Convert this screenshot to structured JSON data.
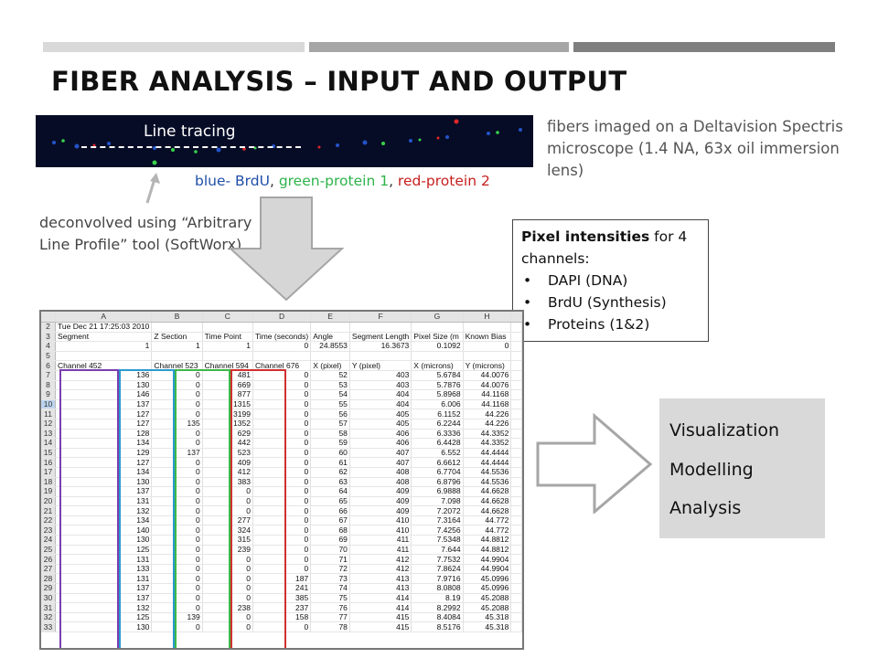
{
  "slide": {
    "title": "FIBER ANALYSIS – INPUT AND OUTPUT",
    "top_bar_colors": [
      "#d9d9d9",
      "#a6a6a6",
      "#7f7f7f"
    ]
  },
  "fiber_image": {
    "label": "Line tracing"
  },
  "imaging_description": "fibers imaged on a Deltavision Spectris microscope (1.4 NA, 63x oil immersion lens)",
  "channel_legend": {
    "blue": "blue- BrdU",
    "sep1": ", ",
    "green": "green-protein 1",
    "sep2": ", ",
    "red": "red-protein 2",
    "colors": {
      "blue": "#1f4fa8",
      "green": "#2db34a",
      "red": "#c81e1e"
    }
  },
  "deconvolution_note": "deconvolved using “Arbitrary Line Profile” tool (SoftWorx)",
  "pixel_box": {
    "heading_bold": "Pixel intensities",
    "heading_rest": " for 4 channels:",
    "items": [
      "DAPI (DNA)",
      "BrdU (Synthesis)",
      "Proteins (1&2)"
    ]
  },
  "output_box": {
    "items": [
      "Visualization",
      "Modelling",
      "Analysis"
    ]
  },
  "spreadsheet": {
    "columns": [
      "A",
      "B",
      "C",
      "D",
      "E",
      "F",
      "G",
      "H"
    ],
    "selected_row": "10",
    "column_box_colors": [
      "#7a3fb0",
      "#2a9ad0",
      "#3db846",
      "#d03030"
    ],
    "rows": [
      {
        "n": "2",
        "cells": [
          "Tue Dec 21 17:25:03 2010",
          "",
          "",
          "",
          "",
          "",
          "",
          ""
        ]
      },
      {
        "n": "3",
        "cells": [
          "Segment",
          "Z Section",
          "Time Point",
          "Time (seconds)",
          "Angle",
          "Segment Length",
          "Pixel Size (m",
          "Known Bias"
        ]
      },
      {
        "n": "4",
        "cells": [
          "1",
          "1",
          "1",
          "0",
          "24.8553",
          "16.3673",
          "0.1092",
          "0"
        ]
      },
      {
        "n": "5",
        "cells": [
          "",
          "",
          "",
          "",
          "",
          "",
          "",
          ""
        ]
      },
      {
        "n": "6",
        "cells": [
          "Channel 452",
          "Channel 523",
          "Channel 594",
          "Channel 676",
          "X (pixel)",
          "Y (pixel)",
          "X (microns)",
          "Y (microns)"
        ]
      },
      {
        "n": "7",
        "cells": [
          "136",
          "0",
          "481",
          "0",
          "52",
          "403",
          "5.6784",
          "44.0076"
        ]
      },
      {
        "n": "8",
        "cells": [
          "130",
          "0",
          "669",
          "0",
          "53",
          "403",
          "5.7876",
          "44.0076"
        ]
      },
      {
        "n": "9",
        "cells": [
          "146",
          "0",
          "877",
          "0",
          "54",
          "404",
          "5.8968",
          "44.1168"
        ]
      },
      {
        "n": "10",
        "cells": [
          "137",
          "0",
          "1315",
          "0",
          "55",
          "404",
          "6.006",
          "44.1168"
        ]
      },
      {
        "n": "11",
        "cells": [
          "127",
          "0",
          "3199",
          "0",
          "56",
          "405",
          "6.1152",
          "44.226"
        ]
      },
      {
        "n": "12",
        "cells": [
          "127",
          "135",
          "1352",
          "0",
          "57",
          "405",
          "6.2244",
          "44.226"
        ]
      },
      {
        "n": "13",
        "cells": [
          "128",
          "0",
          "629",
          "0",
          "58",
          "406",
          "6.3336",
          "44.3352"
        ]
      },
      {
        "n": "14",
        "cells": [
          "134",
          "0",
          "442",
          "0",
          "59",
          "406",
          "6.4428",
          "44.3352"
        ]
      },
      {
        "n": "15",
        "cells": [
          "129",
          "137",
          "523",
          "0",
          "60",
          "407",
          "6.552",
          "44.4444"
        ]
      },
      {
        "n": "16",
        "cells": [
          "127",
          "0",
          "409",
          "0",
          "61",
          "407",
          "6.6612",
          "44.4444"
        ]
      },
      {
        "n": "17",
        "cells": [
          "134",
          "0",
          "412",
          "0",
          "62",
          "408",
          "6.7704",
          "44.5536"
        ]
      },
      {
        "n": "18",
        "cells": [
          "130",
          "0",
          "383",
          "0",
          "63",
          "408",
          "6.8796",
          "44.5536"
        ]
      },
      {
        "n": "19",
        "cells": [
          "137",
          "0",
          "0",
          "0",
          "64",
          "409",
          "6.9888",
          "44.6628"
        ]
      },
      {
        "n": "20",
        "cells": [
          "131",
          "0",
          "0",
          "0",
          "65",
          "409",
          "7.098",
          "44.6628"
        ]
      },
      {
        "n": "21",
        "cells": [
          "132",
          "0",
          "0",
          "0",
          "66",
          "409",
          "7.2072",
          "44.6628"
        ]
      },
      {
        "n": "22",
        "cells": [
          "134",
          "0",
          "277",
          "0",
          "67",
          "410",
          "7.3164",
          "44.772"
        ]
      },
      {
        "n": "23",
        "cells": [
          "140",
          "0",
          "324",
          "0",
          "68",
          "410",
          "7.4256",
          "44.772"
        ]
      },
      {
        "n": "24",
        "cells": [
          "130",
          "0",
          "315",
          "0",
          "69",
          "411",
          "7.5348",
          "44.8812"
        ]
      },
      {
        "n": "25",
        "cells": [
          "125",
          "0",
          "239",
          "0",
          "70",
          "411",
          "7.644",
          "44.8812"
        ]
      },
      {
        "n": "26",
        "cells": [
          "131",
          "0",
          "0",
          "0",
          "71",
          "412",
          "7.7532",
          "44.9904"
        ]
      },
      {
        "n": "27",
        "cells": [
          "133",
          "0",
          "0",
          "0",
          "72",
          "412",
          "7.8624",
          "44.9904"
        ]
      },
      {
        "n": "28",
        "cells": [
          "131",
          "0",
          "0",
          "187",
          "73",
          "413",
          "7.9716",
          "45.0996"
        ]
      },
      {
        "n": "29",
        "cells": [
          "137",
          "0",
          "0",
          "241",
          "74",
          "413",
          "8.0808",
          "45.0996"
        ]
      },
      {
        "n": "30",
        "cells": [
          "137",
          "0",
          "0",
          "385",
          "75",
          "414",
          "8.19",
          "45.2088"
        ]
      },
      {
        "n": "31",
        "cells": [
          "132",
          "0",
          "238",
          "237",
          "76",
          "414",
          "8.2992",
          "45.2088"
        ]
      },
      {
        "n": "32",
        "cells": [
          "125",
          "139",
          "0",
          "158",
          "77",
          "415",
          "8.4084",
          "45.318"
        ]
      },
      {
        "n": "33",
        "cells": [
          "130",
          "0",
          "0",
          "0",
          "78",
          "415",
          "8.5176",
          "45.318"
        ]
      }
    ]
  }
}
